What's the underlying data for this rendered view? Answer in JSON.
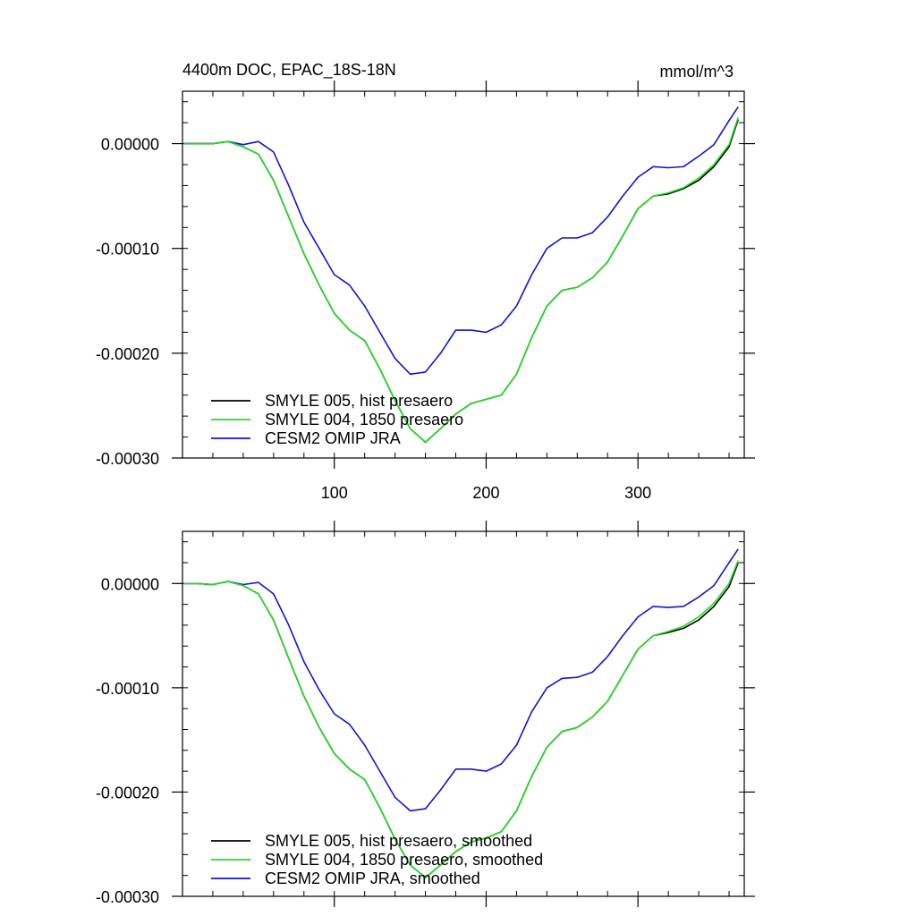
{
  "colors": {
    "hist": "#000000",
    "pre1850": "#22dd22",
    "omip": "#1414cc"
  },
  "x_axis": {
    "xlim": [
      0,
      370
    ],
    "major_ticks": [
      100,
      200,
      300
    ],
    "minor_step": 20,
    "tick_labels": [
      "100",
      "200",
      "300"
    ]
  },
  "y_axis": {
    "ylim": [
      -0.0003,
      5e-05
    ],
    "major_ticks": [
      0,
      -0.0001,
      -0.0002,
      -0.0003
    ],
    "minor_step": 2e-05,
    "tick_labels": [
      "0.00000",
      "-0.00010",
      "-0.00020",
      "-0.00030"
    ]
  },
  "chart_data": [
    {
      "type": "line",
      "title_left": "4400m DOC, EPAC_18S-18N",
      "title_right": "mmol/m^3",
      "x": [
        1,
        10,
        20,
        30,
        40,
        50,
        60,
        70,
        80,
        90,
        100,
        110,
        120,
        130,
        140,
        150,
        160,
        170,
        180,
        190,
        200,
        210,
        220,
        230,
        240,
        250,
        260,
        270,
        280,
        290,
        300,
        310,
        320,
        330,
        340,
        350,
        360,
        366
      ],
      "series": [
        {
          "name": "SMYLE 005, hist presaero",
          "color": "#000000",
          "values": [
            0,
            0,
            0,
            2e-06,
            -3e-06,
            -1e-05,
            -3.5e-05,
            -7e-05,
            -0.000105,
            -0.000135,
            -0.000162,
            -0.000178,
            -0.000188,
            -0.000215,
            -0.000245,
            -0.000272,
            -0.000285,
            -0.000272,
            -0.000258,
            -0.000248,
            -0.000244,
            -0.00024,
            -0.00022,
            -0.000185,
            -0.000155,
            -0.00014,
            -0.000137,
            -0.000128,
            -0.000113,
            -8.8e-05,
            -6.2e-05,
            -5e-05,
            -4.8e-05,
            -4.3e-05,
            -3.5e-05,
            -2.2e-05,
            -3e-06,
            2.3e-05
          ]
        },
        {
          "name": "SMYLE 004, 1850 presaero",
          "color": "#22dd22",
          "values": [
            0,
            0,
            0,
            2e-06,
            -3e-06,
            -1e-05,
            -3.5e-05,
            -7e-05,
            -0.000105,
            -0.000135,
            -0.000162,
            -0.000178,
            -0.000188,
            -0.000215,
            -0.000245,
            -0.000272,
            -0.000285,
            -0.000272,
            -0.000258,
            -0.000248,
            -0.000244,
            -0.00024,
            -0.00022,
            -0.000185,
            -0.000155,
            -0.00014,
            -0.000137,
            -0.000128,
            -0.000113,
            -8.8e-05,
            -6.2e-05,
            -5e-05,
            -4.7e-05,
            -4.2e-05,
            -3.3e-05,
            -2e-05,
            -1e-06,
            2.5e-05
          ]
        },
        {
          "name": "CESM2 OMIP JRA",
          "color": "#1414cc",
          "values": [
            0,
            0,
            0,
            2e-06,
            -1e-06,
            2e-06,
            -8e-06,
            -4e-05,
            -7.5e-05,
            -0.0001,
            -0.000125,
            -0.000135,
            -0.000155,
            -0.00018,
            -0.000205,
            -0.00022,
            -0.000218,
            -0.0002,
            -0.000178,
            -0.000178,
            -0.00018,
            -0.000173,
            -0.000155,
            -0.000125,
            -0.0001,
            -9e-05,
            -9e-05,
            -8.5e-05,
            -7e-05,
            -5e-05,
            -3.2e-05,
            -2.2e-05,
            -2.3e-05,
            -2.2e-05,
            -1.2e-05,
            -1e-06,
            2.2e-05,
            3.5e-05
          ]
        }
      ]
    },
    {
      "type": "line",
      "x": [
        1,
        10,
        20,
        30,
        40,
        50,
        60,
        70,
        80,
        90,
        100,
        110,
        120,
        130,
        140,
        150,
        160,
        170,
        180,
        190,
        200,
        210,
        220,
        230,
        240,
        250,
        260,
        270,
        280,
        290,
        300,
        310,
        320,
        330,
        340,
        350,
        360,
        366
      ],
      "series": [
        {
          "name": "SMYLE 005, hist presaero, smoothed",
          "color": "#000000",
          "values": [
            0,
            0,
            -1e-06,
            2e-06,
            -2e-06,
            -1e-05,
            -3.5e-05,
            -7.2e-05,
            -0.000108,
            -0.000138,
            -0.000163,
            -0.000178,
            -0.000188,
            -0.000215,
            -0.000245,
            -0.00027,
            -0.000282,
            -0.00027,
            -0.000257,
            -0.000248,
            -0.000244,
            -0.000238,
            -0.000218,
            -0.000185,
            -0.000157,
            -0.000142,
            -0.000138,
            -0.000128,
            -0.000113,
            -8.8e-05,
            -6.3e-05,
            -5e-05,
            -4.7e-05,
            -4.3e-05,
            -3.5e-05,
            -2.2e-05,
            -3e-06,
            2e-05
          ]
        },
        {
          "name": "SMYLE 004, 1850 presaero, smoothed",
          "color": "#22dd22",
          "values": [
            0,
            0,
            -1e-06,
            2e-06,
            -2e-06,
            -1e-05,
            -3.5e-05,
            -7.2e-05,
            -0.000108,
            -0.000138,
            -0.000163,
            -0.000178,
            -0.000188,
            -0.000215,
            -0.000245,
            -0.00027,
            -0.000282,
            -0.00027,
            -0.000257,
            -0.000248,
            -0.000244,
            -0.000238,
            -0.000218,
            -0.000185,
            -0.000157,
            -0.000142,
            -0.000138,
            -0.000128,
            -0.000113,
            -8.8e-05,
            -6.3e-05,
            -5e-05,
            -4.6e-05,
            -4.1e-05,
            -3.2e-05,
            -1.9e-05,
            0.0,
            2.2e-05
          ]
        },
        {
          "name": "CESM2 OMIP JRA, smoothed",
          "color": "#1414cc",
          "values": [
            0,
            0,
            -1e-06,
            2e-06,
            -1e-06,
            1e-06,
            -1e-05,
            -4e-05,
            -7.5e-05,
            -0.000102,
            -0.000125,
            -0.000135,
            -0.000155,
            -0.00018,
            -0.000205,
            -0.000218,
            -0.000216,
            -0.000198,
            -0.000178,
            -0.000178,
            -0.00018,
            -0.000173,
            -0.000155,
            -0.000123,
            -0.0001,
            -9.1e-05,
            -9e-05,
            -8.5e-05,
            -7e-05,
            -5e-05,
            -3.2e-05,
            -2.2e-05,
            -2.3e-05,
            -2.2e-05,
            -1.3e-05,
            -2e-06,
            2e-05,
            3.3e-05
          ]
        }
      ]
    }
  ]
}
